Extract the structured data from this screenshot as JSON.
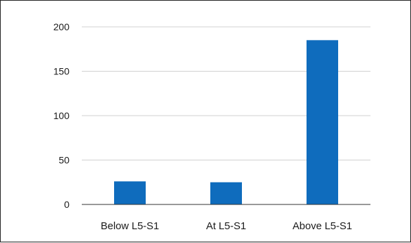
{
  "chart_data": {
    "type": "bar",
    "categories": [
      "Below L5-S1",
      "At L5-S1",
      "Above L5-S1"
    ],
    "series": [
      {
        "values": [
          26,
          25,
          185
        ]
      }
    ],
    "title": "",
    "xlabel": "",
    "ylabel": "",
    "ylim": [
      0,
      200
    ],
    "yticks": [
      0,
      50,
      100,
      150,
      200
    ],
    "grid": true,
    "legend": "none",
    "bar_color": "#0f6cbd",
    "grid_color": "#d0d0d0",
    "axis_color": "#333333"
  }
}
